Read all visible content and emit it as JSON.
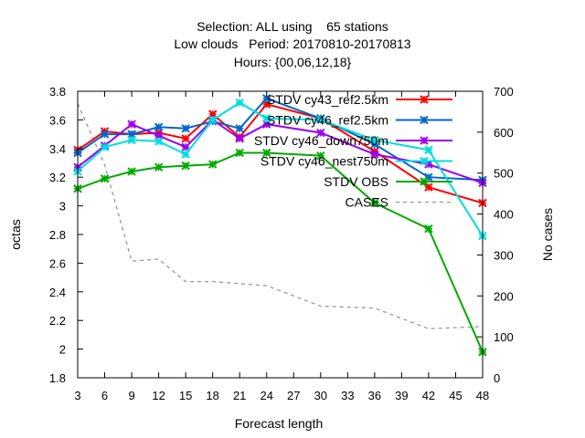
{
  "chart_data": {
    "type": "line",
    "title": [
      "Selection: ALL using    65 stations",
      "Low clouds   Period: 20170810-20170813",
      "Hours: {00,06,12,18}"
    ],
    "xlabel": "Forecast length",
    "ylabel": "octas",
    "y2label": "No cases",
    "x": [
      3,
      6,
      9,
      12,
      15,
      18,
      21,
      24,
      27,
      30,
      33,
      36,
      39,
      42,
      45,
      48
    ],
    "xticks": [
      3,
      6,
      9,
      12,
      15,
      18,
      21,
      24,
      27,
      30,
      33,
      36,
      39,
      42,
      45,
      48
    ],
    "ylim": [
      1.8,
      3.8
    ],
    "yticks": [
      1.8,
      2,
      2.2,
      2.4,
      2.6,
      2.8,
      3,
      3.2,
      3.4,
      3.6,
      3.8
    ],
    "y2lim": [
      0,
      700
    ],
    "y2ticks": [
      0,
      100,
      200,
      300,
      400,
      500,
      600,
      700
    ],
    "legend_position": "top-right",
    "series": [
      {
        "name": "STDV cy43_ref2.5km",
        "color": "#ff0000",
        "marker": "x",
        "axis": "y1",
        "x": [
          3,
          6,
          9,
          12,
          15,
          18,
          21,
          24,
          30,
          36,
          42,
          48
        ],
        "values": [
          3.39,
          3.52,
          3.5,
          3.51,
          3.47,
          3.64,
          3.48,
          3.71,
          3.61,
          3.38,
          3.13,
          3.02
        ]
      },
      {
        "name": "STDV cy46_ref2.5km",
        "color": "#0066cc",
        "marker": "x",
        "axis": "y1",
        "x": [
          3,
          6,
          9,
          12,
          15,
          18,
          21,
          24,
          30,
          36,
          42,
          48
        ],
        "values": [
          3.37,
          3.5,
          3.5,
          3.55,
          3.54,
          3.59,
          3.54,
          3.75,
          3.61,
          3.43,
          3.2,
          3.18
        ]
      },
      {
        "name": "STDV cy46_down750m",
        "color": "#9900ee",
        "marker": "x",
        "axis": "y1",
        "x": [
          3,
          6,
          9,
          12,
          15,
          18,
          21,
          24,
          30,
          36,
          42,
          48
        ],
        "values": [
          3.27,
          3.42,
          3.57,
          3.49,
          3.41,
          3.6,
          3.47,
          3.57,
          3.51,
          3.36,
          3.29,
          3.16
        ]
      },
      {
        "name": "STDV cy46_nest750m",
        "color": "#00dddd",
        "marker": "x",
        "axis": "y1",
        "x": [
          3,
          6,
          9,
          12,
          15,
          18,
          21,
          24,
          30,
          36,
          42,
          48
        ],
        "values": [
          3.24,
          3.41,
          3.46,
          3.45,
          3.36,
          3.6,
          3.72,
          3.61,
          3.6,
          3.46,
          3.39,
          2.79
        ]
      },
      {
        "name": "STDV OBS",
        "color": "#00aa00",
        "marker": "x",
        "axis": "y1",
        "x": [
          3,
          6,
          9,
          12,
          15,
          18,
          21,
          24,
          30,
          36,
          42,
          48
        ],
        "values": [
          3.12,
          3.19,
          3.24,
          3.27,
          3.28,
          3.29,
          3.37,
          3.37,
          3.35,
          3.02,
          2.84,
          1.98
        ]
      },
      {
        "name": "CASES",
        "color": "#999999",
        "marker": "none",
        "dashed": true,
        "axis": "y2",
        "x": [
          3,
          6,
          9,
          12,
          15,
          18,
          21,
          24,
          30,
          36,
          42,
          48
        ],
        "values": [
          670,
          520,
          285,
          290,
          235,
          235,
          230,
          225,
          175,
          170,
          120,
          125
        ]
      }
    ]
  }
}
